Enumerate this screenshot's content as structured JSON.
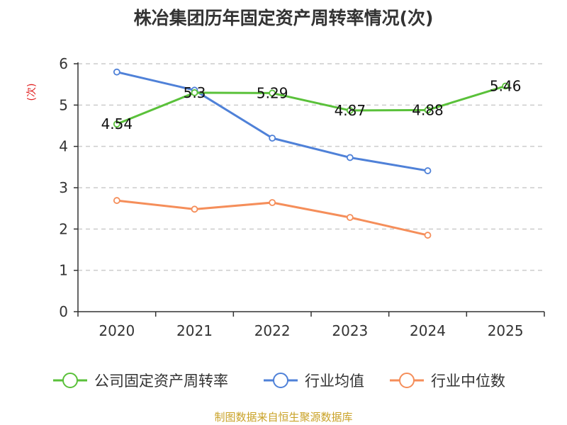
{
  "chart_data": {
    "type": "line",
    "title": "株冶集团历年固定资产周转率情况(次)",
    "ylabel": "(次)",
    "xlabel": "",
    "categories": [
      "2020",
      "2021",
      "2022",
      "2023",
      "2024",
      "2025"
    ],
    "ylim": [
      0,
      6
    ],
    "yticks": [
      0,
      1,
      2,
      3,
      4,
      5,
      6
    ],
    "grid": true,
    "legend_position": "bottom",
    "series": [
      {
        "name": "公司固定资产周转率",
        "color": "#5ac13a",
        "values": [
          4.54,
          5.3,
          5.29,
          4.87,
          4.88,
          5.46
        ],
        "labels": [
          "4.54",
          "5.3",
          "5.29",
          "4.87",
          "4.88",
          "5.46"
        ]
      },
      {
        "name": "行业均值",
        "color": "#4f81d8",
        "values": [
          5.8,
          5.36,
          4.2,
          3.73,
          3.41,
          null
        ],
        "labels": []
      },
      {
        "name": "行业中位数",
        "color": "#f58e5a",
        "values": [
          2.69,
          2.48,
          2.64,
          2.28,
          1.85,
          null
        ],
        "labels": []
      }
    ],
    "source": "制图数据来自恒生聚源数据库"
  }
}
